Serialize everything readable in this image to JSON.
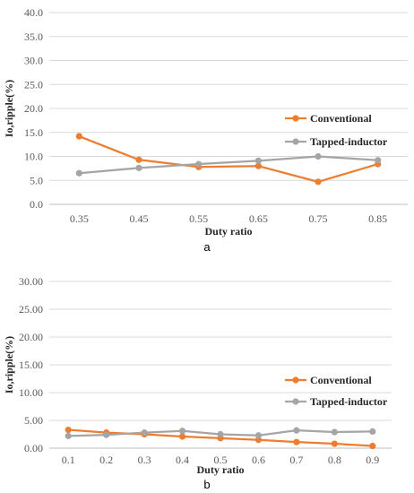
{
  "chart_data": [
    {
      "type": "line",
      "panel_label": "a",
      "xlabel": "Duty ratio",
      "ylabel": "Io,ripple(%)",
      "categories": [
        "0.35",
        "0.45",
        "0.55",
        "0.65",
        "0.75",
        "0.85"
      ],
      "ylim": [
        0,
        40
      ],
      "yticks": [
        "0.0",
        "5.0",
        "10.0",
        "15.0",
        "20.0",
        "25.0",
        "30.0",
        "35.0",
        "40.0"
      ],
      "grid": true,
      "legend_position": "right",
      "series": [
        {
          "name": "Conventional",
          "color": "#ED7D31",
          "values": [
            14.2,
            9.3,
            7.8,
            8.0,
            4.7,
            8.4
          ]
        },
        {
          "name": "Tapped-inductor",
          "color": "#A5A5A5",
          "values": [
            6.5,
            7.6,
            8.4,
            9.1,
            10.0,
            9.2
          ]
        }
      ]
    },
    {
      "type": "line",
      "panel_label": "b",
      "xlabel": "Duty ratio",
      "ylabel": "Io,ripple(%)",
      "categories": [
        "0.1",
        "0.2",
        "0.3",
        "0.4",
        "0.5",
        "0.6",
        "0.7",
        "0.8",
        "0.9"
      ],
      "ylim": [
        0,
        30
      ],
      "yticks": [
        "0.00",
        "5.00",
        "10.00",
        "15.00",
        "20.00",
        "25.00",
        "30.00"
      ],
      "grid": true,
      "legend_position": "right",
      "series": [
        {
          "name": "Conventional",
          "color": "#ED7D31",
          "values": [
            3.3,
            2.8,
            2.5,
            2.1,
            1.8,
            1.5,
            1.1,
            0.8,
            0.4
          ]
        },
        {
          "name": "Tapped-inductor",
          "color": "#A5A5A5",
          "values": [
            2.2,
            2.4,
            2.8,
            3.1,
            2.5,
            2.3,
            3.2,
            2.9,
            3.0
          ]
        }
      ]
    }
  ]
}
